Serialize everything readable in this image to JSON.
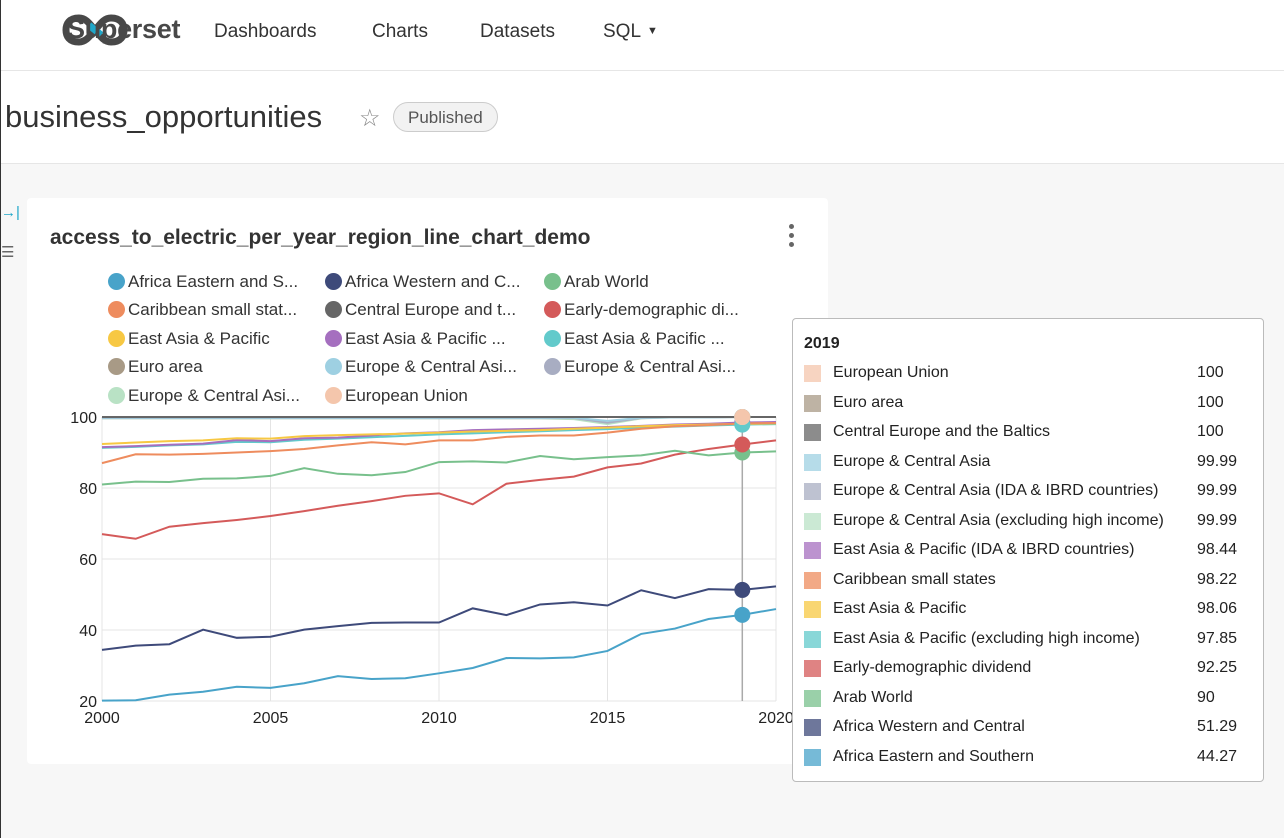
{
  "navbar": {
    "logo_text": "Superset",
    "items": [
      {
        "label": "Dashboards"
      },
      {
        "label": "Charts"
      },
      {
        "label": "Datasets"
      },
      {
        "label": "SQL"
      }
    ]
  },
  "header": {
    "title": "business_opportunities",
    "status_badge": "Published"
  },
  "chart_data": {
    "type": "line",
    "title": "access_to_electric_per_year_region_line_chart_demo",
    "xlabel": "",
    "ylabel": "",
    "xlim": [
      2000,
      2020
    ],
    "ylim": [
      20,
      100
    ],
    "x_ticks": [
      "2000",
      "2005",
      "2010",
      "2015",
      "2020"
    ],
    "y_ticks": [
      "20",
      "40",
      "60",
      "80",
      "100"
    ],
    "grid": true,
    "legend_position": "top",
    "hover_x": 2019,
    "x": [
      2000,
      2001,
      2002,
      2003,
      2004,
      2005,
      2006,
      2007,
      2008,
      2009,
      2010,
      2011,
      2012,
      2013,
      2014,
      2015,
      2016,
      2017,
      2018,
      2019,
      2020
    ],
    "legend": [
      {
        "label": "Africa Eastern and S...",
        "color": "#48A3C9"
      },
      {
        "label": "Africa Western and C...",
        "color": "#3E4A7A"
      },
      {
        "label": "Arab World",
        "color": "#78C08C"
      },
      {
        "label": "Caribbean small stat...",
        "color": "#EE8C5E"
      },
      {
        "label": "Central Europe and t...",
        "color": "#666666"
      },
      {
        "label": "Early-demographic di...",
        "color": "#D45A5A"
      },
      {
        "label": "East Asia & Pacific",
        "color": "#F7C843"
      },
      {
        "label": "East Asia & Pacific ...",
        "color": "#A56FBF"
      },
      {
        "label": "East Asia & Pacific ...",
        "color": "#62CACB"
      },
      {
        "label": "Euro area",
        "color": "#A89A86"
      },
      {
        "label": "Europe & Central Asi...",
        "color": "#9ED0E2"
      },
      {
        "label": "Europe & Central Asi...",
        "color": "#A8ADC2"
      },
      {
        "label": "Europe & Central Asi...",
        "color": "#B9E2C5"
      },
      {
        "label": "European Union",
        "color": "#F4C6AC"
      }
    ],
    "series": [
      {
        "name": "Africa Eastern and Southern",
        "color": "#48A3C9",
        "values": [
          20.1,
          20.2,
          21.8,
          22.6,
          24.0,
          23.7,
          25.0,
          27.0,
          26.2,
          26.4,
          27.8,
          29.3,
          32.1,
          32.0,
          32.3,
          34.1,
          38.9,
          40.4,
          43.1,
          44.27,
          45.9
        ]
      },
      {
        "name": "Africa Western and Central",
        "color": "#3E4A7A",
        "values": [
          34.4,
          35.6,
          36.0,
          40.1,
          37.8,
          38.1,
          40.1,
          41.1,
          42.0,
          42.1,
          42.1,
          46.1,
          44.2,
          47.2,
          47.8,
          46.9,
          51.2,
          49.0,
          51.5,
          51.29,
          52.3
        ]
      },
      {
        "name": "Arab World",
        "color": "#78C08C",
        "values": [
          81.0,
          81.8,
          81.7,
          82.6,
          82.7,
          83.4,
          85.6,
          84.0,
          83.6,
          84.5,
          87.3,
          87.5,
          87.2,
          89.0,
          88.1,
          88.7,
          89.2,
          90.5,
          89.2,
          90,
          90.3
        ]
      },
      {
        "name": "Caribbean small states",
        "color": "#EE8C5E",
        "values": [
          87.0,
          89.5,
          89.4,
          89.6,
          90.0,
          90.4,
          91.0,
          92.0,
          92.9,
          92.3,
          93.4,
          93.4,
          94.4,
          94.8,
          94.8,
          95.6,
          96.7,
          97.4,
          97.7,
          98.22,
          98.3
        ]
      },
      {
        "name": "Central Europe and the Baltics",
        "color": "#666666",
        "values": [
          100,
          100,
          100,
          100,
          100,
          100,
          100,
          100,
          100,
          100,
          100,
          100,
          100,
          100,
          100,
          100,
          100,
          100,
          100,
          100,
          100
        ]
      },
      {
        "name": "Early-demographic dividend",
        "color": "#D45A5A",
        "values": [
          67.0,
          65.7,
          69.1,
          70.1,
          71.0,
          72.1,
          73.5,
          75.0,
          76.3,
          77.8,
          78.5,
          75.4,
          81.2,
          82.3,
          83.2,
          85.8,
          86.9,
          89.4,
          91.0,
          92.25,
          93.4
        ]
      },
      {
        "name": "East Asia & Pacific",
        "color": "#F7C843",
        "values": [
          92.4,
          92.8,
          93.2,
          93.4,
          94.0,
          93.9,
          94.6,
          94.9,
          95.1,
          95.3,
          95.6,
          95.9,
          96.1,
          96.3,
          96.7,
          97.0,
          97.4,
          97.7,
          97.9,
          98.06,
          98.2
        ]
      },
      {
        "name": "East Asia & Pacific (IDA & IBRD countries)",
        "color": "#A56FBF",
        "values": [
          91.5,
          91.8,
          92.2,
          92.5,
          93.5,
          93.2,
          94.0,
          94.2,
          94.8,
          95.4,
          95.7,
          96.3,
          96.5,
          96.7,
          96.9,
          97.2,
          97.5,
          97.9,
          98.1,
          98.44,
          98.6
        ]
      },
      {
        "name": "East Asia & Pacific (excluding high income)",
        "color": "#62CACB",
        "values": [
          91.3,
          91.6,
          92.0,
          92.3,
          93.0,
          92.9,
          93.6,
          93.9,
          94.3,
          94.7,
          95.1,
          95.4,
          95.7,
          96.0,
          96.3,
          96.6,
          97.0,
          97.3,
          97.6,
          97.85,
          98.0
        ]
      },
      {
        "name": "Euro area",
        "color": "#A89A86",
        "values": [
          100,
          100,
          100,
          100,
          100,
          100,
          100,
          100,
          100,
          100,
          100,
          100,
          100,
          100,
          100,
          100,
          100,
          100,
          100,
          100,
          100
        ]
      },
      {
        "name": "Europe & Central Asia",
        "color": "#9ED0E2",
        "values": [
          99.8,
          99.8,
          99.8,
          99.8,
          99.8,
          99.8,
          99.8,
          99.8,
          99.8,
          99.8,
          99.8,
          99.8,
          99.8,
          99.8,
          99.8,
          98.9,
          99.8,
          99.9,
          99.9,
          99.99,
          99.99
        ]
      },
      {
        "name": "Europe & Central Asia (IDA & IBRD countries)",
        "color": "#A8ADC2",
        "values": [
          99.7,
          99.7,
          99.7,
          99.7,
          99.7,
          99.7,
          99.7,
          99.7,
          99.7,
          99.7,
          99.7,
          99.7,
          99.7,
          99.7,
          99.7,
          98.4,
          99.7,
          99.9,
          99.9,
          99.99,
          99.99
        ]
      },
      {
        "name": "Europe & Central Asia (excluding high income)",
        "color": "#B9E2C5",
        "values": [
          99.6,
          99.6,
          99.6,
          99.6,
          99.6,
          99.6,
          99.6,
          99.6,
          99.6,
          99.6,
          99.6,
          99.6,
          99.6,
          99.6,
          99.4,
          98.0,
          99.6,
          99.9,
          99.9,
          99.99,
          99.99
        ]
      },
      {
        "name": "European Union",
        "color": "#F4C6AC",
        "values": [
          100,
          100,
          100,
          100,
          100,
          100,
          100,
          100,
          100,
          100,
          100,
          100,
          100,
          100,
          100,
          100,
          100,
          100,
          100,
          100,
          100
        ]
      }
    ]
  },
  "tooltip": {
    "title": "2019",
    "rows": [
      {
        "name": "European Union",
        "value": "100",
        "color": "#F4C6AC"
      },
      {
        "name": "Euro area",
        "value": "100",
        "color": "#A89A86"
      },
      {
        "name": "Central Europe and the Baltics",
        "value": "100",
        "color": "#666666"
      },
      {
        "name": "Europe & Central Asia",
        "value": "99.99",
        "color": "#9ED0E2"
      },
      {
        "name": "Europe & Central Asia (IDA & IBRD countries)",
        "value": "99.99",
        "color": "#A8ADC2"
      },
      {
        "name": "Europe & Central Asia (excluding high income)",
        "value": "99.99",
        "color": "#B9E2C5"
      },
      {
        "name": "East Asia & Pacific (IDA & IBRD countries)",
        "value": "98.44",
        "color": "#A56FBF"
      },
      {
        "name": "Caribbean small states",
        "value": "98.22",
        "color": "#EE8C5E"
      },
      {
        "name": "East Asia & Pacific",
        "value": "98.06",
        "color": "#F7C843"
      },
      {
        "name": "East Asia & Pacific (excluding high income)",
        "value": "97.85",
        "color": "#62CACB"
      },
      {
        "name": "Early-demographic dividend",
        "value": "92.25",
        "color": "#D45A5A"
      },
      {
        "name": "Arab World",
        "value": "90",
        "color": "#78C08C"
      },
      {
        "name": "Africa Western and Central",
        "value": "51.29",
        "color": "#3E4A7A"
      },
      {
        "name": "Africa Eastern and Southern",
        "value": "44.27",
        "color": "#48A3C9"
      }
    ]
  }
}
